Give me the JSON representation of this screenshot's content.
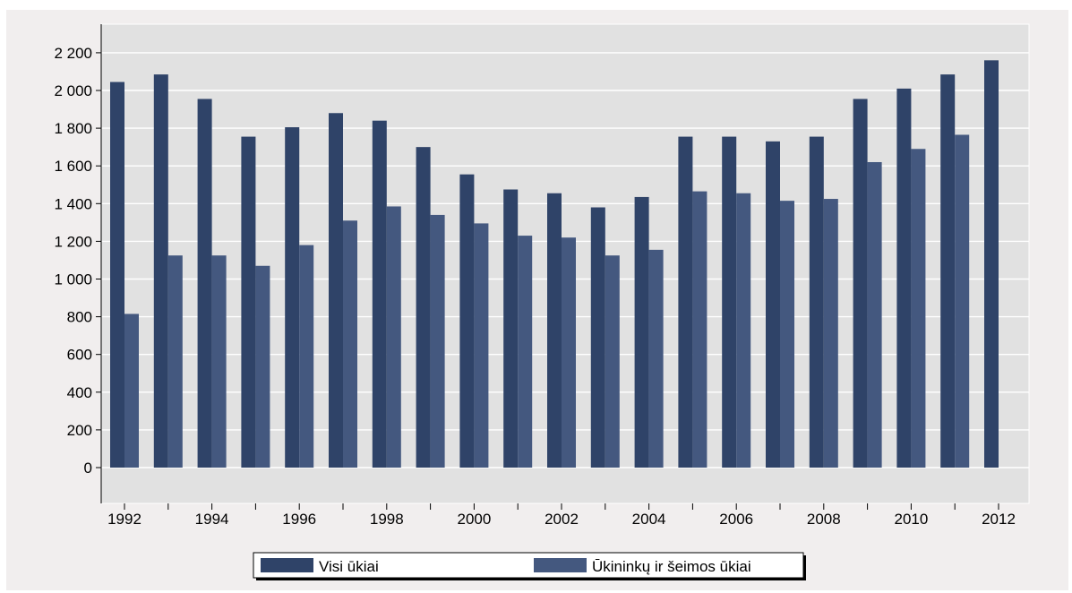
{
  "chart_data": {
    "type": "bar",
    "title": "",
    "xlabel": "",
    "ylabel": "",
    "x": [
      1992,
      1993,
      1994,
      1995,
      1996,
      1997,
      1998,
      1999,
      2000,
      2001,
      2002,
      2003,
      2004,
      2005,
      2006,
      2007,
      2008,
      2009,
      2010,
      2011,
      2012
    ],
    "x_tick_labels": [
      "1992",
      "1994",
      "1996",
      "1998",
      "2000",
      "2002",
      "2004",
      "2006",
      "2008",
      "2010",
      "2012"
    ],
    "ylim": [
      -200,
      2300
    ],
    "y_ticks": [
      0,
      200,
      400,
      600,
      800,
      1000,
      1200,
      1400,
      1600,
      1800,
      2000,
      2200
    ],
    "y_tick_labels": [
      "0",
      "200",
      "400",
      "600",
      "800",
      "1 000",
      "1 200",
      "1 400",
      "1 600",
      "1 800",
      "2 000",
      "2 200"
    ],
    "grid": true,
    "legend_position": "bottom",
    "series": [
      {
        "name": "Visi ūkiai",
        "color": "#2f4368",
        "values": [
          2045,
          2085,
          1955,
          1755,
          1805,
          1880,
          1840,
          1700,
          1555,
          1475,
          1455,
          1380,
          1435,
          1755,
          1755,
          1730,
          1755,
          1955,
          2010,
          2085,
          2160
        ]
      },
      {
        "name": "Ūkininkų ir šeimos ūkiai",
        "color": "#44587f",
        "values": [
          815,
          1125,
          1125,
          1070,
          1180,
          1310,
          1385,
          1340,
          1295,
          1230,
          1220,
          1125,
          1155,
          1465,
          1455,
          1415,
          1425,
          1620,
          1690,
          1765,
          null
        ]
      }
    ]
  }
}
